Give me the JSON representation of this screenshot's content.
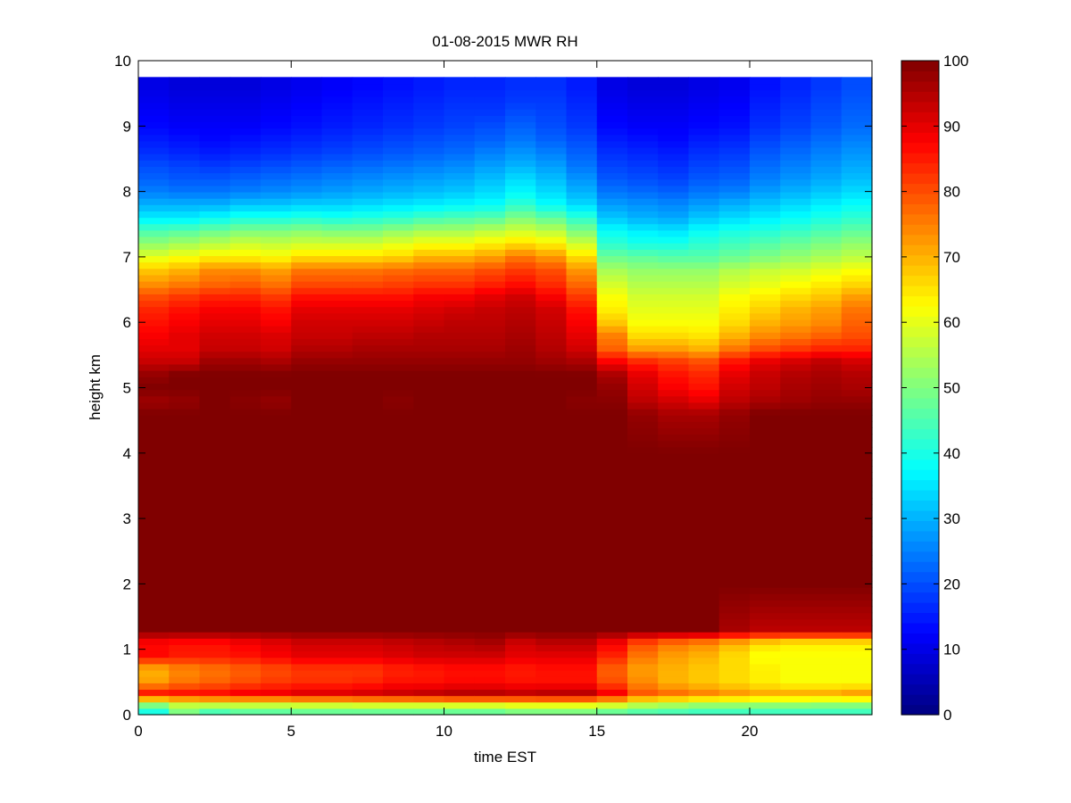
{
  "chart_data": {
    "type": "heatmap",
    "title": "01-08-2015 MWR RH",
    "xlabel": "time EST",
    "ylabel": "height km",
    "xlim": [
      0,
      24
    ],
    "ylim": [
      0,
      10
    ],
    "x_ticks": [
      0,
      5,
      10,
      15,
      20
    ],
    "y_ticks": [
      0,
      1,
      2,
      3,
      4,
      5,
      6,
      7,
      8,
      9,
      10
    ],
    "grid": false,
    "colormap": "jet",
    "colorbar": {
      "range": [
        0,
        100
      ],
      "ticks": [
        0,
        10,
        20,
        30,
        40,
        50,
        60,
        70,
        80,
        90,
        100
      ],
      "placement": "right"
    },
    "x_centers": [
      0.5,
      1.5,
      2.5,
      3.5,
      4.5,
      5.5,
      6.5,
      7.5,
      8.5,
      9.5,
      10.5,
      11.5,
      12.5,
      13.5,
      14.5,
      15.5,
      16.5,
      17.5,
      18.5,
      19.5,
      20.5,
      21.5,
      22.5,
      23.5
    ],
    "height_profile_km": [
      0.05,
      0.2,
      0.3,
      0.5,
      0.7,
      0.9,
      1.1,
      1.3,
      2.0,
      3.0,
      4.0,
      4.6,
      4.8,
      5.0,
      5.2,
      5.4,
      5.6,
      5.8,
      6.0,
      6.2,
      6.4,
      6.6,
      6.8,
      7.0,
      7.2,
      7.4,
      7.6,
      7.8,
      8.0,
      8.2,
      8.4,
      8.6,
      8.8,
      9.0,
      9.2,
      9.4,
      9.6,
      9.75
    ],
    "rh_percent": [
      [
        40,
        55,
        88,
        72,
        70,
        87,
        87,
        100,
        100,
        100,
        100,
        100,
        97,
        100,
        98,
        93,
        90,
        88,
        86,
        84,
        80,
        73,
        68,
        60,
        52,
        45,
        36,
        30,
        25,
        22,
        20,
        17,
        15,
        13,
        12,
        11,
        10,
        10
      ],
      [
        50,
        60,
        88,
        76,
        74,
        85,
        86,
        100,
        100,
        100,
        100,
        100,
        98,
        100,
        100,
        93,
        90,
        90,
        88,
        86,
        82,
        75,
        70,
        62,
        54,
        46,
        36,
        30,
        24,
        21,
        19,
        16,
        14,
        12,
        11,
        10,
        9,
        9
      ],
      [
        45,
        62,
        88,
        78,
        76,
        85,
        86,
        100,
        100,
        100,
        100,
        100,
        100,
        100,
        100,
        97,
        93,
        92,
        90,
        88,
        84,
        77,
        74,
        64,
        56,
        48,
        38,
        30,
        24,
        21,
        18,
        15,
        13,
        12,
        11,
        10,
        9,
        9
      ],
      [
        47,
        62,
        90,
        80,
        78,
        86,
        88,
        100,
        100,
        100,
        100,
        100,
        99,
        100,
        100,
        97,
        93,
        92,
        90,
        88,
        84,
        78,
        74,
        64,
        58,
        50,
        40,
        32,
        25,
        22,
        19,
        16,
        14,
        12,
        11,
        10,
        9,
        9
      ],
      [
        47,
        62,
        90,
        82,
        80,
        88,
        90,
        100,
        100,
        100,
        100,
        100,
        98,
        100,
        100,
        96,
        92,
        91,
        88,
        86,
        82,
        76,
        72,
        63,
        57,
        50,
        40,
        32,
        26,
        23,
        20,
        17,
        15,
        13,
        12,
        11,
        10,
        10
      ],
      [
        48,
        63,
        92,
        83,
        82,
        90,
        92,
        100,
        100,
        100,
        100,
        100,
        100,
        100,
        100,
        98,
        95,
        93,
        92,
        90,
        86,
        80,
        76,
        66,
        58,
        51,
        41,
        33,
        27,
        24,
        21,
        18,
        16,
        14,
        13,
        12,
        11,
        11
      ],
      [
        48,
        63,
        92,
        83,
        82,
        90,
        92,
        100,
        100,
        100,
        100,
        100,
        100,
        100,
        100,
        98,
        95,
        93,
        92,
        90,
        86,
        80,
        76,
        66,
        58,
        50,
        40,
        33,
        28,
        25,
        22,
        19,
        17,
        15,
        14,
        13,
        12,
        12
      ],
      [
        48,
        64,
        93,
        84,
        82,
        90,
        92,
        100,
        100,
        100,
        100,
        100,
        100,
        100,
        100,
        98,
        96,
        94,
        92,
        90,
        86,
        80,
        76,
        66,
        58,
        50,
        41,
        34,
        29,
        26,
        23,
        20,
        18,
        16,
        15,
        14,
        13,
        13
      ],
      [
        48,
        64,
        94,
        86,
        84,
        91,
        93,
        100,
        100,
        100,
        100,
        100,
        99,
        100,
        100,
        98,
        96,
        94,
        92,
        90,
        86,
        81,
        77,
        67,
        60,
        52,
        42,
        35,
        30,
        27,
        24,
        21,
        19,
        17,
        16,
        15,
        14,
        14
      ],
      [
        48,
        64,
        95,
        86,
        85,
        92,
        94,
        100,
        100,
        100,
        100,
        100,
        100,
        100,
        100,
        98,
        96,
        95,
        93,
        91,
        88,
        82,
        78,
        70,
        62,
        54,
        44,
        36,
        31,
        28,
        25,
        22,
        20,
        18,
        17,
        16,
        15,
        15
      ],
      [
        48,
        65,
        96,
        87,
        86,
        92,
        95,
        100,
        100,
        100,
        100,
        100,
        100,
        100,
        100,
        98,
        96,
        95,
        94,
        92,
        88,
        82,
        78,
        70,
        62,
        54,
        45,
        37,
        32,
        29,
        26,
        23,
        21,
        19,
        18,
        17,
        16,
        16
      ],
      [
        48,
        65,
        96,
        87,
        86,
        92,
        96,
        100,
        100,
        100,
        100,
        100,
        100,
        100,
        100,
        98,
        96,
        95,
        94,
        93,
        90,
        84,
        80,
        72,
        64,
        56,
        46,
        38,
        34,
        31,
        28,
        25,
        22,
        20,
        18,
        17,
        16,
        16
      ],
      [
        50,
        66,
        95,
        86,
        85,
        90,
        92,
        100,
        100,
        100,
        100,
        100,
        100,
        100,
        100,
        98,
        97,
        96,
        95,
        94,
        92,
        86,
        82,
        76,
        66,
        58,
        50,
        42,
        37,
        34,
        30,
        27,
        24,
        22,
        20,
        18,
        17,
        17
      ],
      [
        50,
        66,
        96,
        86,
        86,
        90,
        94,
        100,
        100,
        100,
        100,
        100,
        100,
        100,
        100,
        97,
        95,
        94,
        93,
        92,
        88,
        83,
        80,
        73,
        64,
        56,
        47,
        38,
        34,
        31,
        28,
        25,
        22,
        20,
        19,
        18,
        17,
        17
      ],
      [
        50,
        66,
        96,
        86,
        86,
        90,
        94,
        100,
        100,
        100,
        100,
        100,
        99,
        100,
        100,
        96,
        92,
        90,
        88,
        86,
        82,
        77,
        73,
        66,
        58,
        50,
        42,
        34,
        30,
        27,
        24,
        22,
        20,
        18,
        17,
        16,
        15,
        15
      ],
      [
        48,
        64,
        90,
        80,
        78,
        84,
        88,
        100,
        100,
        100,
        100,
        100,
        99,
        98,
        96,
        88,
        78,
        75,
        68,
        64,
        62,
        58,
        54,
        48,
        42,
        38,
        32,
        28,
        24,
        21,
        19,
        17,
        15,
        13,
        12,
        11,
        10,
        10
      ],
      [
        46,
        60,
        80,
        74,
        72,
        76,
        80,
        100,
        100,
        100,
        100,
        98,
        94,
        92,
        90,
        84,
        72,
        66,
        62,
        60,
        58,
        55,
        52,
        47,
        40,
        36,
        30,
        27,
        23,
        20,
        18,
        16,
        14,
        12,
        11,
        10,
        9,
        9
      ],
      [
        45,
        58,
        78,
        70,
        70,
        72,
        76,
        100,
        100,
        100,
        100,
        96,
        92,
        88,
        86,
        82,
        72,
        66,
        62,
        60,
        58,
        55,
        52,
        46,
        40,
        35,
        29,
        26,
        22,
        19,
        17,
        15,
        13,
        12,
        11,
        10,
        9,
        9
      ],
      [
        44,
        56,
        76,
        68,
        68,
        70,
        74,
        100,
        100,
        100,
        100,
        96,
        90,
        86,
        84,
        80,
        70,
        65,
        62,
        60,
        58,
        55,
        52,
        46,
        42,
        38,
        32,
        28,
        24,
        21,
        19,
        17,
        15,
        13,
        12,
        11,
        10,
        10
      ],
      [
        44,
        56,
        74,
        66,
        66,
        66,
        70,
        96,
        100,
        100,
        100,
        98,
        94,
        92,
        90,
        86,
        76,
        70,
        66,
        64,
        62,
        58,
        55,
        48,
        44,
        40,
        34,
        30,
        25,
        22,
        20,
        18,
        16,
        14,
        13,
        12,
        11,
        11
      ],
      [
        44,
        55,
        72,
        64,
        64,
        62,
        66,
        94,
        100,
        100,
        100,
        100,
        96,
        94,
        93,
        90,
        80,
        74,
        70,
        67,
        64,
        60,
        57,
        50,
        46,
        41,
        36,
        32,
        28,
        25,
        23,
        21,
        19,
        17,
        16,
        15,
        14,
        14
      ],
      [
        44,
        55,
        72,
        62,
        62,
        62,
        64,
        94,
        100,
        100,
        100,
        100,
        97,
        96,
        95,
        92,
        82,
        76,
        72,
        70,
        66,
        62,
        58,
        52,
        48,
        43,
        38,
        34,
        30,
        27,
        25,
        23,
        21,
        19,
        18,
        17,
        16,
        16
      ],
      [
        44,
        54,
        72,
        62,
        62,
        62,
        64,
        94,
        100,
        100,
        100,
        100,
        98,
        97,
        96,
        94,
        84,
        78,
        74,
        72,
        68,
        64,
        60,
        54,
        50,
        45,
        40,
        36,
        32,
        29,
        27,
        25,
        23,
        21,
        20,
        19,
        18,
        18
      ],
      [
        44,
        54,
        74,
        62,
        62,
        62,
        64,
        94,
        100,
        100,
        100,
        100,
        98,
        96,
        95,
        92,
        84,
        80,
        78,
        76,
        72,
        66,
        62,
        56,
        52,
        47,
        42,
        38,
        34,
        31,
        29,
        27,
        25,
        23,
        22,
        21,
        20,
        20
      ]
    ]
  }
}
